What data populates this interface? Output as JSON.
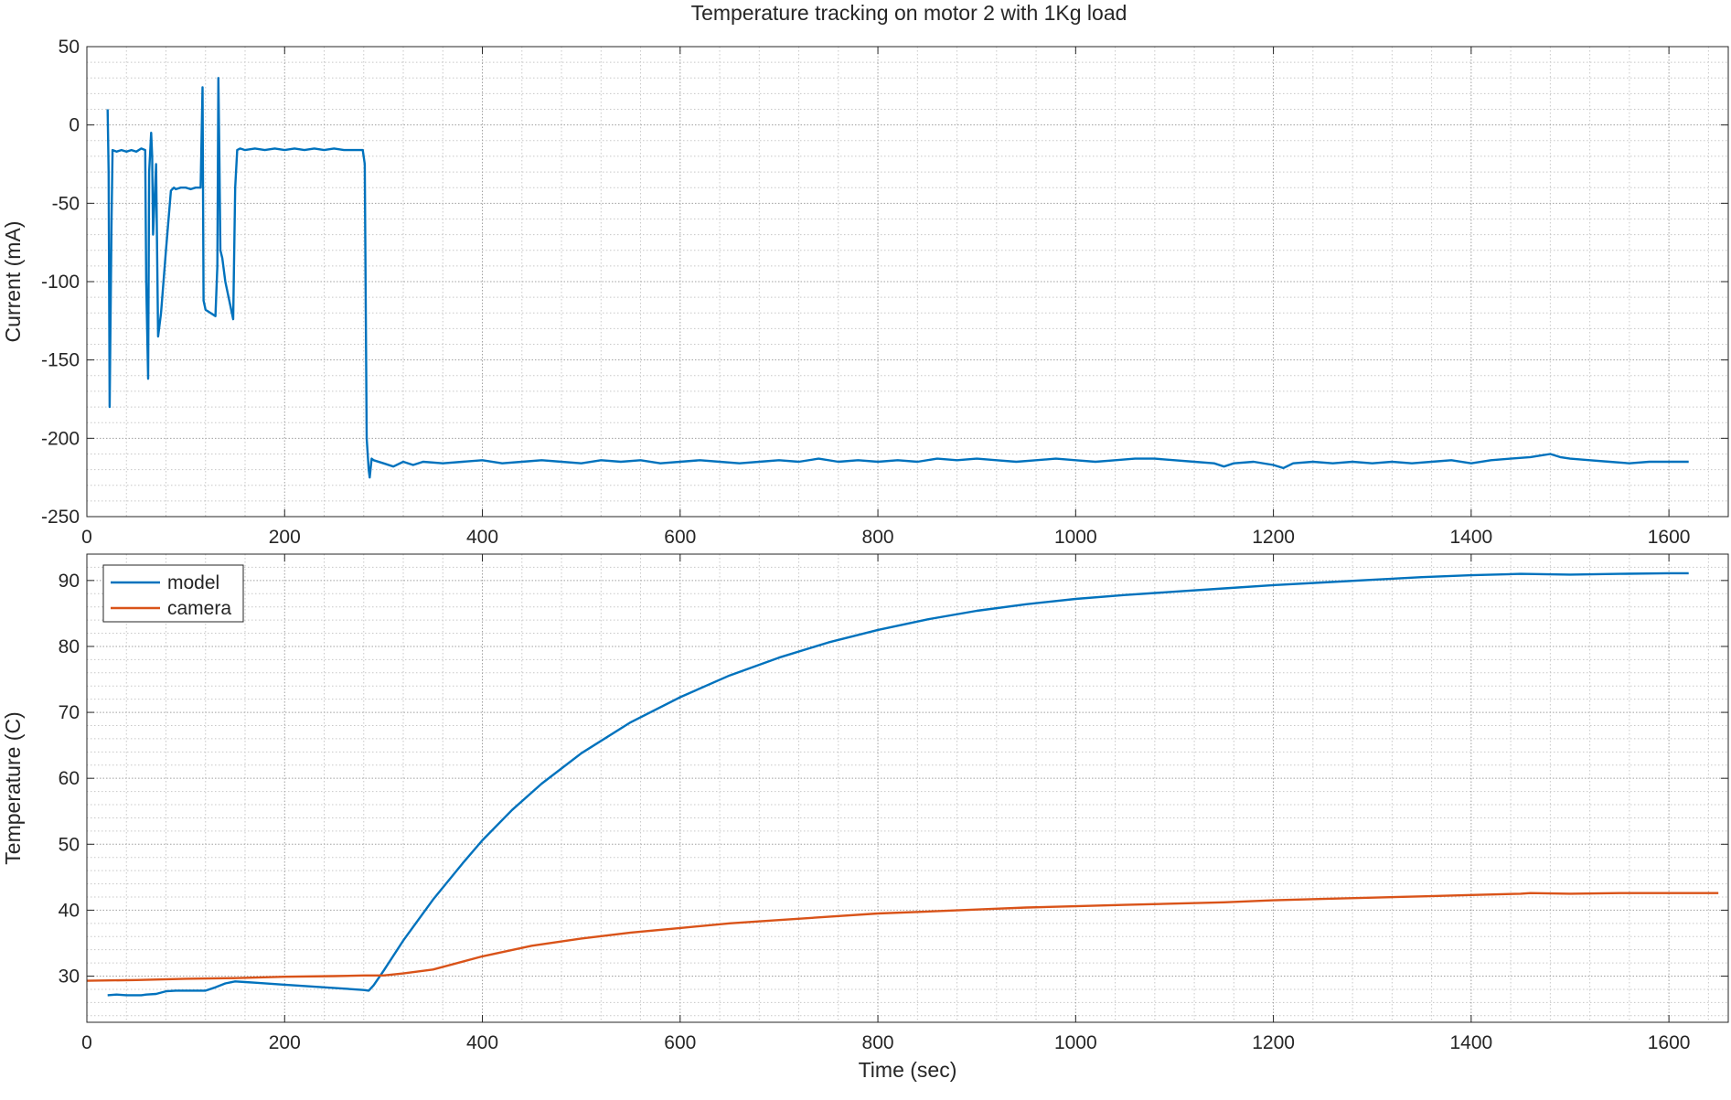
{
  "title": "Temperature tracking on motor 2 with 1Kg load",
  "colors": {
    "model": "#0072BD",
    "camera": "#D95319",
    "axis": "#262626",
    "grid": "#c8c8c8"
  },
  "chart_data": [
    {
      "type": "line",
      "title": "Temperature tracking on motor 2 with 1Kg load",
      "xlabel": "",
      "ylabel": "Current (mA)",
      "xlim": [
        0,
        1660
      ],
      "ylim": [
        -250,
        50
      ],
      "xticks": [
        0,
        200,
        400,
        600,
        800,
        1000,
        1200,
        1400,
        1600
      ],
      "yticks": [
        -250,
        -200,
        -150,
        -100,
        -50,
        0,
        50
      ],
      "grid": true,
      "minor_grid": true,
      "legend": null,
      "series": [
        {
          "color": "#0072BD",
          "x": [
            21,
            22,
            23,
            25,
            26,
            30,
            35,
            40,
            45,
            50,
            55,
            59,
            60,
            62,
            63,
            65,
            66,
            67,
            70,
            72,
            75,
            80,
            85,
            88,
            90,
            95,
            100,
            105,
            110,
            115,
            117,
            118,
            120,
            125,
            130,
            132,
            133,
            134,
            135,
            137,
            140,
            145,
            148,
            150,
            152,
            155,
            160,
            170,
            180,
            190,
            200,
            210,
            220,
            230,
            240,
            250,
            260,
            270,
            279,
            281,
            283,
            285,
            286,
            288,
            290,
            300,
            310,
            320,
            330,
            340,
            360,
            380,
            400,
            420,
            440,
            460,
            480,
            500,
            520,
            540,
            560,
            580,
            600,
            620,
            640,
            660,
            680,
            700,
            720,
            740,
            760,
            780,
            800,
            820,
            840,
            860,
            880,
            900,
            920,
            940,
            960,
            980,
            1000,
            1020,
            1040,
            1060,
            1080,
            1100,
            1120,
            1140,
            1150,
            1160,
            1180,
            1200,
            1210,
            1220,
            1240,
            1260,
            1280,
            1300,
            1320,
            1340,
            1360,
            1380,
            1400,
            1420,
            1440,
            1460,
            1470,
            1480,
            1490,
            1500,
            1520,
            1540,
            1560,
            1580,
            1600,
            1620
          ],
          "y": [
            10,
            -30,
            -180,
            -60,
            -16,
            -17,
            -16,
            -17,
            -16,
            -17,
            -15,
            -16,
            -100,
            -162,
            -30,
            -5,
            -20,
            -70,
            -25,
            -135,
            -120,
            -80,
            -42,
            -40,
            -41,
            -40,
            -40,
            -41,
            -40,
            -40,
            24,
            -112,
            -118,
            -120,
            -122,
            -90,
            30,
            -20,
            -80,
            -85,
            -100,
            -115,
            -124,
            -40,
            -16,
            -15,
            -16,
            -15,
            -16,
            -15,
            -16,
            -15,
            -16,
            -15,
            -16,
            -15,
            -16,
            -16,
            -16,
            -25,
            -200,
            -220,
            -225,
            -213,
            -214,
            -216,
            -218,
            -215,
            -217,
            -215,
            -216,
            -215,
            -214,
            -216,
            -215,
            -214,
            -215,
            -216,
            -214,
            -215,
            -214,
            -216,
            -215,
            -214,
            -215,
            -216,
            -215,
            -214,
            -215,
            -213,
            -215,
            -214,
            -215,
            -214,
            -215,
            -213,
            -214,
            -213,
            -214,
            -215,
            -214,
            -213,
            -214,
            -215,
            -214,
            -213,
            -213,
            -214,
            -215,
            -216,
            -218,
            -216,
            -215,
            -217,
            -219,
            -216,
            -215,
            -216,
            -215,
            -216,
            -215,
            -216,
            -215,
            -214,
            -216,
            -214,
            -213,
            -212,
            -211,
            -210,
            -212,
            -213,
            -214,
            -215,
            -216,
            -215,
            -215,
            -215
          ]
        }
      ]
    },
    {
      "type": "line",
      "title": "",
      "xlabel": "Time (sec)",
      "ylabel": "Temperature (C)",
      "xlim": [
        0,
        1660
      ],
      "ylim": [
        23,
        94
      ],
      "xticks": [
        0,
        200,
        400,
        600,
        800,
        1000,
        1200,
        1400,
        1600
      ],
      "yticks": [
        30,
        40,
        50,
        60,
        70,
        80,
        90
      ],
      "grid": true,
      "minor_grid": true,
      "legend": "top-left",
      "series": [
        {
          "name": "model",
          "color": "#0072BD",
          "x": [
            21,
            30,
            40,
            55,
            60,
            70,
            80,
            90,
            100,
            110,
            120,
            130,
            140,
            150,
            160,
            170,
            200,
            230,
            260,
            280,
            285,
            290,
            300,
            320,
            350,
            380,
            400,
            430,
            460,
            500,
            550,
            600,
            650,
            700,
            750,
            800,
            850,
            900,
            950,
            1000,
            1050,
            1100,
            1150,
            1200,
            1250,
            1300,
            1350,
            1400,
            1450,
            1500,
            1550,
            1600,
            1620
          ],
          "y": [
            27.1,
            27.2,
            27.1,
            27.1,
            27.2,
            27.3,
            27.7,
            27.8,
            27.8,
            27.8,
            27.8,
            28.3,
            28.9,
            29.2,
            29.1,
            29.0,
            28.7,
            28.4,
            28.1,
            27.9,
            27.8,
            28.6,
            30.8,
            35.4,
            41.6,
            47.1,
            50.6,
            55.2,
            59.2,
            63.8,
            68.5,
            72.3,
            75.6,
            78.3,
            80.6,
            82.5,
            84.1,
            85.4,
            86.4,
            87.2,
            87.8,
            88.3,
            88.8,
            89.3,
            89.7,
            90.1,
            90.5,
            90.8,
            91.0,
            90.9,
            91.0,
            91.1,
            91.1
          ]
        },
        {
          "name": "camera",
          "color": "#D95319",
          "x": [
            0,
            50,
            100,
            150,
            200,
            250,
            280,
            300,
            320,
            350,
            400,
            450,
            500,
            550,
            600,
            650,
            700,
            750,
            800,
            850,
            900,
            950,
            1000,
            1050,
            1100,
            1150,
            1200,
            1250,
            1300,
            1350,
            1400,
            1450,
            1460,
            1500,
            1550,
            1600,
            1650
          ],
          "y": [
            29.3,
            29.4,
            29.6,
            29.7,
            29.9,
            30.0,
            30.1,
            30.1,
            30.4,
            31.0,
            33.0,
            34.6,
            35.7,
            36.6,
            37.3,
            38.0,
            38.5,
            39.0,
            39.5,
            39.8,
            40.1,
            40.4,
            40.6,
            40.8,
            41.0,
            41.2,
            41.5,
            41.7,
            41.9,
            42.1,
            42.3,
            42.5,
            42.6,
            42.5,
            42.6,
            42.6,
            42.6
          ]
        }
      ]
    }
  ]
}
